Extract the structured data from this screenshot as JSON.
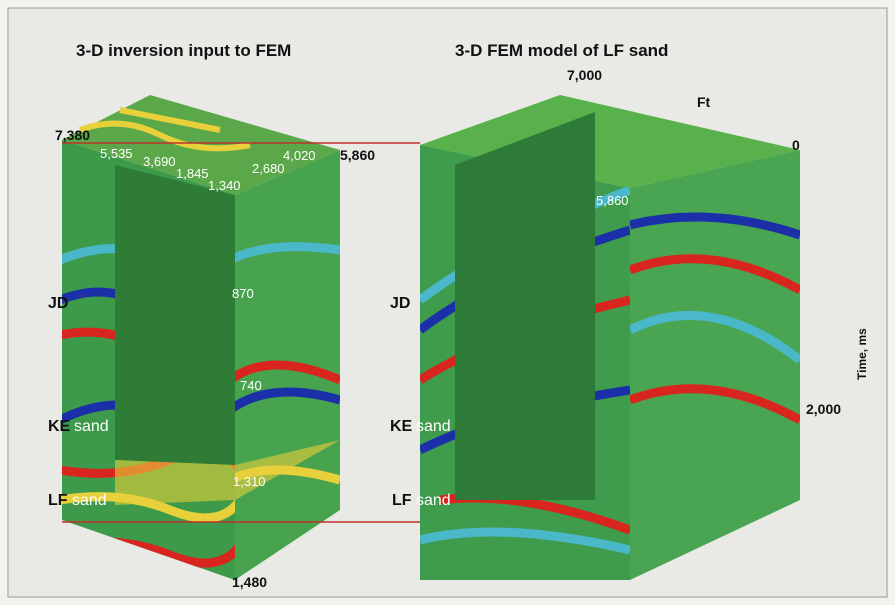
{
  "panels": [
    {
      "title": "3-D inversion input to FEM",
      "labels": [
        "7,380",
        "5,535",
        "3,690",
        "1,845",
        "1,340",
        "2,680",
        "4,020",
        "5,860",
        "870",
        "740",
        "1,310",
        "1,480"
      ],
      "horizons": [
        {
          "name": "JD"
        },
        {
          "name": "KE",
          "suffix": "sand"
        },
        {
          "name": "LF",
          "suffix": "sand"
        }
      ]
    },
    {
      "title": "3-D FEM model of LF sand",
      "labels": [
        "7,000",
        "Ft",
        "0",
        "5,860",
        "2,000"
      ],
      "axis_label": "Time, ms",
      "horizons": [
        {
          "name": "JD"
        },
        {
          "name": "KE",
          "suffix": "sand"
        },
        {
          "name": "LF",
          "suffix": "sand"
        }
      ]
    }
  ]
}
